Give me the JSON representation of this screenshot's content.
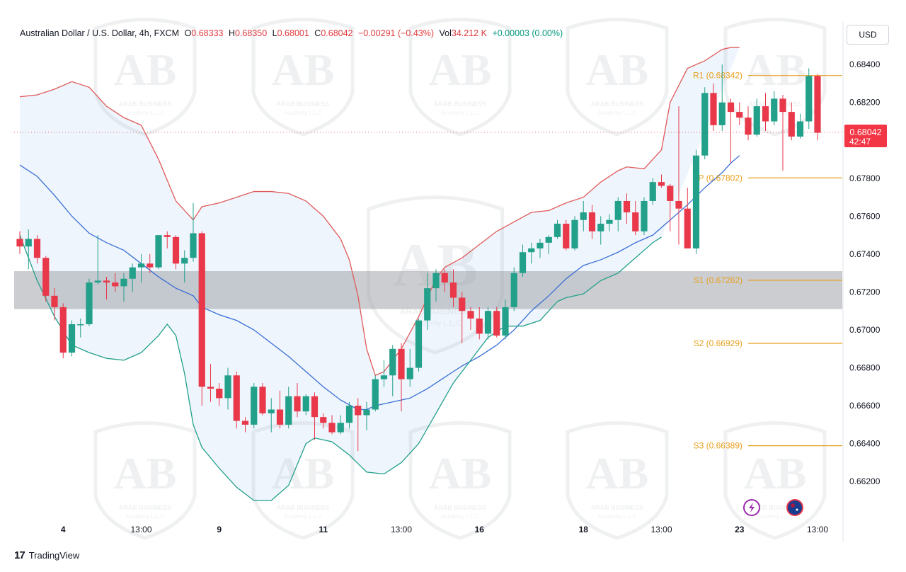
{
  "header": {
    "symbol": "Australian Dollar / U.S. Dollar, 4h, FXCM",
    "open_label": "O",
    "open": "0.68333",
    "high_label": "H",
    "high": "0.68350",
    "low_label": "L",
    "low": "0.68001",
    "close_label": "C",
    "close": "0.68042",
    "change": "−0.00291 (−0.43%)",
    "vol_label": "Vol",
    "vol": "34.212 K",
    "vol_change": "+0.00003 (0.00%)"
  },
  "currency_button": "USD",
  "price_tag": {
    "price": "0.68042",
    "timer": "42:47"
  },
  "footer": {
    "logo": "17",
    "brand": "TradingView"
  },
  "watermark": {
    "line1": "ARAB BUSINESS",
    "line2": "Academy L.L.C",
    "monogram": "AB"
  },
  "colors": {
    "up": "#22a08a",
    "down": "#e8384a",
    "upper_band": "#e05a5a",
    "mid_band": "#3a6fd6",
    "lower_band": "#22a08a",
    "pivot": "#e8a020",
    "zone": "#9a9ca2"
  },
  "icons": [
    "lightning-icon",
    "australia-flag-icon"
  ],
  "chart_data": {
    "type": "candlestick",
    "y_axis": {
      "min": 0.661,
      "max": 0.6855,
      "ticks": [
        "0.66200",
        "0.66400",
        "0.66600",
        "0.66800",
        "0.67000",
        "0.67200",
        "0.67400",
        "0.67600",
        "0.67800",
        "0.68000",
        "0.68200",
        "0.68400"
      ]
    },
    "x_axis_labels": [
      {
        "label": "4",
        "bar": 5,
        "bold": true
      },
      {
        "label": "13:00",
        "bar": 14,
        "bold": false
      },
      {
        "label": "9",
        "bar": 23,
        "bold": true
      },
      {
        "label": "11",
        "bar": 35,
        "bold": true
      },
      {
        "label": "13:00",
        "bar": 44,
        "bold": false
      },
      {
        "label": "16",
        "bar": 53,
        "bold": true
      },
      {
        "label": "18",
        "bar": 65,
        "bold": true
      },
      {
        "label": "13:00",
        "bar": 74,
        "bold": false
      },
      {
        "label": "23",
        "bar": 83,
        "bold": true
      },
      {
        "label": "13:00",
        "bar": 92,
        "bold": false
      }
    ],
    "candles": [
      [
        0.6748,
        0.6752,
        0.674,
        0.6744
      ],
      [
        0.6744,
        0.6753,
        0.6732,
        0.6748
      ],
      [
        0.6748,
        0.675,
        0.6735,
        0.6738
      ],
      [
        0.6738,
        0.6739,
        0.6715,
        0.6718
      ],
      [
        0.6718,
        0.6722,
        0.6705,
        0.6712
      ],
      [
        0.6712,
        0.6714,
        0.6685,
        0.6688
      ],
      [
        0.6688,
        0.6705,
        0.6686,
        0.6703
      ],
      [
        0.6703,
        0.6706,
        0.6696,
        0.6703
      ],
      [
        0.6703,
        0.6727,
        0.6702,
        0.6725
      ],
      [
        0.6725,
        0.675,
        0.6724,
        0.6726
      ],
      [
        0.6726,
        0.6728,
        0.6716,
        0.6725
      ],
      [
        0.6725,
        0.673,
        0.672,
        0.6723
      ],
      [
        0.6723,
        0.673,
        0.6715,
        0.6727
      ],
      [
        0.6727,
        0.6735,
        0.672,
        0.6733
      ],
      [
        0.6733,
        0.674,
        0.6725,
        0.6735
      ],
      [
        0.6735,
        0.674,
        0.673,
        0.6733
      ],
      [
        0.6733,
        0.675,
        0.6732,
        0.675
      ],
      [
        0.675,
        0.6752,
        0.6743,
        0.6749
      ],
      [
        0.6749,
        0.675,
        0.6732,
        0.6735
      ],
      [
        0.6735,
        0.6742,
        0.6725,
        0.6738
      ],
      [
        0.6738,
        0.6767,
        0.6736,
        0.6751
      ],
      [
        0.6751,
        0.6752,
        0.666,
        0.667
      ],
      [
        0.667,
        0.6682,
        0.6662,
        0.6669
      ],
      [
        0.6669,
        0.6672,
        0.666,
        0.6664
      ],
      [
        0.6664,
        0.668,
        0.6658,
        0.6676
      ],
      [
        0.6676,
        0.6678,
        0.6648,
        0.6652
      ],
      [
        0.6652,
        0.6654,
        0.6646,
        0.665
      ],
      [
        0.665,
        0.6672,
        0.6648,
        0.667
      ],
      [
        0.667,
        0.6672,
        0.6655,
        0.6656
      ],
      [
        0.6656,
        0.6664,
        0.6646,
        0.6658
      ],
      [
        0.6658,
        0.6668,
        0.6648,
        0.665
      ],
      [
        0.665,
        0.667,
        0.6648,
        0.6665
      ],
      [
        0.6665,
        0.6672,
        0.6654,
        0.6657
      ],
      [
        0.6657,
        0.6666,
        0.6655,
        0.6665
      ],
      [
        0.6665,
        0.6667,
        0.6642,
        0.6654
      ],
      [
        0.6654,
        0.6656,
        0.6648,
        0.6651
      ],
      [
        0.6651,
        0.6655,
        0.6645,
        0.6646
      ],
      [
        0.6646,
        0.6655,
        0.6645,
        0.6651
      ],
      [
        0.6651,
        0.6662,
        0.6648,
        0.666
      ],
      [
        0.666,
        0.6664,
        0.6636,
        0.6655
      ],
      [
        0.6655,
        0.6662,
        0.6647,
        0.6658
      ],
      [
        0.6658,
        0.6676,
        0.6657,
        0.6674
      ],
      [
        0.6674,
        0.6684,
        0.667,
        0.6676
      ],
      [
        0.6676,
        0.6692,
        0.6665,
        0.669
      ],
      [
        0.669,
        0.6693,
        0.6657,
        0.6674
      ],
      [
        0.6674,
        0.669,
        0.667,
        0.668
      ],
      [
        0.668,
        0.6706,
        0.6678,
        0.6705
      ],
      [
        0.6705,
        0.673,
        0.67,
        0.6722
      ],
      [
        0.6722,
        0.6732,
        0.6715,
        0.673
      ],
      [
        0.673,
        0.6732,
        0.672,
        0.6725
      ],
      [
        0.6725,
        0.6732,
        0.6712,
        0.6717
      ],
      [
        0.6717,
        0.672,
        0.6693,
        0.671
      ],
      [
        0.671,
        0.6712,
        0.67,
        0.6706
      ],
      [
        0.6706,
        0.6712,
        0.6695,
        0.6698
      ],
      [
        0.6698,
        0.6712,
        0.6695,
        0.671
      ],
      [
        0.671,
        0.6712,
        0.6696,
        0.6697
      ],
      [
        0.6697,
        0.6716,
        0.6695,
        0.6712
      ],
      [
        0.6712,
        0.6733,
        0.671,
        0.673
      ],
      [
        0.673,
        0.6745,
        0.6728,
        0.6741
      ],
      [
        0.6741,
        0.6746,
        0.6735,
        0.6743
      ],
      [
        0.6743,
        0.6748,
        0.6738,
        0.6746
      ],
      [
        0.6746,
        0.675,
        0.674,
        0.6749
      ],
      [
        0.6749,
        0.6758,
        0.6748,
        0.6756
      ],
      [
        0.6756,
        0.6758,
        0.6742,
        0.6743
      ],
      [
        0.6743,
        0.676,
        0.6742,
        0.6758
      ],
      [
        0.6758,
        0.6768,
        0.6752,
        0.6762
      ],
      [
        0.6762,
        0.6766,
        0.6748,
        0.6752
      ],
      [
        0.6752,
        0.676,
        0.6745,
        0.6756
      ],
      [
        0.6756,
        0.6761,
        0.6752,
        0.6758
      ],
      [
        0.6758,
        0.677,
        0.6752,
        0.6768
      ],
      [
        0.6768,
        0.6772,
        0.6756,
        0.6762
      ],
      [
        0.6762,
        0.6768,
        0.675,
        0.6752
      ],
      [
        0.6752,
        0.677,
        0.675,
        0.6768
      ],
      [
        0.6768,
        0.678,
        0.6766,
        0.6778
      ],
      [
        0.6778,
        0.6782,
        0.6775,
        0.6776
      ],
      [
        0.6776,
        0.6777,
        0.6752,
        0.6768
      ],
      [
        0.6768,
        0.6818,
        0.6745,
        0.6764
      ],
      [
        0.6764,
        0.6775,
        0.6743,
        0.6743
      ],
      [
        0.6743,
        0.6795,
        0.674,
        0.6792
      ],
      [
        0.6792,
        0.6828,
        0.679,
        0.6825
      ],
      [
        0.6825,
        0.683,
        0.6805,
        0.6808
      ],
      [
        0.6808,
        0.684,
        0.6805,
        0.682
      ],
      [
        0.682,
        0.6822,
        0.6788,
        0.6815
      ],
      [
        0.6815,
        0.682,
        0.6808,
        0.6812
      ],
      [
        0.6812,
        0.6818,
        0.68,
        0.6803
      ],
      [
        0.6803,
        0.6822,
        0.6802,
        0.6818
      ],
      [
        0.6818,
        0.6825,
        0.6805,
        0.681
      ],
      [
        0.681,
        0.6826,
        0.6808,
        0.6822
      ],
      [
        0.6822,
        0.6824,
        0.6784,
        0.6815
      ],
      [
        0.6815,
        0.682,
        0.68,
        0.6802
      ],
      [
        0.6802,
        0.6814,
        0.6801,
        0.681
      ],
      [
        0.681,
        0.6838,
        0.6806,
        0.6834
      ],
      [
        0.6834,
        0.6835,
        0.68,
        0.6804
      ]
    ],
    "bollinger": {
      "upper": [
        [
          0,
          0.6823
        ],
        [
          2,
          0.6824
        ],
        [
          4,
          0.6827
        ],
        [
          6,
          0.6831
        ],
        [
          8,
          0.6828
        ],
        [
          10,
          0.6818
        ],
        [
          12,
          0.6812
        ],
        [
          14,
          0.6808
        ],
        [
          16,
          0.679
        ],
        [
          18,
          0.6768
        ],
        [
          20,
          0.6758
        ],
        [
          21,
          0.6765
        ],
        [
          23,
          0.6767
        ],
        [
          25,
          0.677
        ],
        [
          27,
          0.6773
        ],
        [
          29,
          0.6773
        ],
        [
          31,
          0.6772
        ],
        [
          33,
          0.6768
        ],
        [
          35,
          0.676
        ],
        [
          37,
          0.6748
        ],
        [
          38,
          0.6737
        ],
        [
          39,
          0.6718
        ],
        [
          40,
          0.669
        ],
        [
          41,
          0.6676
        ],
        [
          42,
          0.6678
        ],
        [
          44,
          0.669
        ],
        [
          46,
          0.6707
        ],
        [
          48,
          0.6727
        ],
        [
          49,
          0.6733
        ],
        [
          51,
          0.6738
        ],
        [
          53,
          0.6745
        ],
        [
          55,
          0.6752
        ],
        [
          57,
          0.6757
        ],
        [
          59,
          0.6762
        ],
        [
          61,
          0.6763
        ],
        [
          63,
          0.6767
        ],
        [
          65,
          0.677
        ],
        [
          67,
          0.6778
        ],
        [
          69,
          0.6784
        ],
        [
          70,
          0.6786
        ],
        [
          72,
          0.6785
        ],
        [
          74,
          0.6795
        ],
        [
          75,
          0.682
        ],
        [
          77,
          0.6838
        ],
        [
          79,
          0.6842
        ],
        [
          81,
          0.6848
        ],
        [
          82,
          0.6849
        ],
        [
          83,
          0.6849
        ]
      ],
      "middle": [
        [
          0,
          0.6787
        ],
        [
          2,
          0.6781
        ],
        [
          4,
          0.6771
        ],
        [
          6,
          0.676
        ],
        [
          8,
          0.6751
        ],
        [
          10,
          0.6746
        ],
        [
          12,
          0.6742
        ],
        [
          14,
          0.6735
        ],
        [
          16,
          0.6728
        ],
        [
          18,
          0.6722
        ],
        [
          20,
          0.6718
        ],
        [
          21,
          0.6712
        ],
        [
          23,
          0.6708
        ],
        [
          25,
          0.6705
        ],
        [
          27,
          0.67
        ],
        [
          29,
          0.6693
        ],
        [
          31,
          0.6686
        ],
        [
          33,
          0.6678
        ],
        [
          35,
          0.667
        ],
        [
          37,
          0.6663
        ],
        [
          39,
          0.6658
        ],
        [
          40,
          0.6658
        ],
        [
          41,
          0.666
        ],
        [
          43,
          0.6662
        ],
        [
          45,
          0.6664
        ],
        [
          47,
          0.6669
        ],
        [
          49,
          0.6675
        ],
        [
          51,
          0.6681
        ],
        [
          53,
          0.6686
        ],
        [
          55,
          0.6692
        ],
        [
          57,
          0.67
        ],
        [
          59,
          0.671
        ],
        [
          61,
          0.6718
        ],
        [
          63,
          0.6727
        ],
        [
          65,
          0.6734
        ],
        [
          67,
          0.6737
        ],
        [
          69,
          0.6741
        ],
        [
          71,
          0.6746
        ],
        [
          73,
          0.675
        ],
        [
          75,
          0.6758
        ],
        [
          77,
          0.6766
        ],
        [
          79,
          0.6775
        ],
        [
          81,
          0.6783
        ],
        [
          82,
          0.6788
        ],
        [
          83,
          0.6792
        ]
      ],
      "lower": [
        [
          0,
          0.675
        ],
        [
          2,
          0.6726
        ],
        [
          4,
          0.6707
        ],
        [
          6,
          0.6692
        ],
        [
          8,
          0.6688
        ],
        [
          10,
          0.6685
        ],
        [
          12,
          0.6684
        ],
        [
          14,
          0.6688
        ],
        [
          16,
          0.6697
        ],
        [
          17,
          0.6703
        ],
        [
          18,
          0.6697
        ],
        [
          19,
          0.6677
        ],
        [
          20,
          0.665
        ],
        [
          21,
          0.6638
        ],
        [
          23,
          0.6627
        ],
        [
          25,
          0.6617
        ],
        [
          27,
          0.661
        ],
        [
          29,
          0.661
        ],
        [
          31,
          0.6618
        ],
        [
          33,
          0.664
        ],
        [
          34,
          0.6643
        ],
        [
          36,
          0.6641
        ],
        [
          38,
          0.6634
        ],
        [
          40,
          0.6625
        ],
        [
          42,
          0.6624
        ],
        [
          44,
          0.663
        ],
        [
          46,
          0.664
        ],
        [
          48,
          0.6656
        ],
        [
          50,
          0.6672
        ],
        [
          52,
          0.6684
        ],
        [
          54,
          0.6696
        ],
        [
          56,
          0.6702
        ],
        [
          58,
          0.6702
        ],
        [
          60,
          0.6705
        ],
        [
          62,
          0.6715
        ],
        [
          63,
          0.6717
        ],
        [
          65,
          0.6719
        ],
        [
          67,
          0.6726
        ],
        [
          69,
          0.673
        ],
        [
          71,
          0.6738
        ],
        [
          72,
          0.6742
        ],
        [
          73,
          0.6746
        ],
        [
          74,
          0.6749
        ]
      ]
    },
    "pivots": [
      {
        "label": "R1 (0.68342)",
        "value": 0.68342
      },
      {
        "label": "P (0.67802)",
        "value": 0.67802
      },
      {
        "label": "S1 (0.67262)",
        "value": 0.67262
      },
      {
        "label": "S2 (0.66929)",
        "value": 0.66929
      },
      {
        "label": "S3 (0.66389)",
        "value": 0.66389
      }
    ],
    "zone": {
      "from": 0.6711,
      "to": 0.6731
    },
    "last_price": 0.68042
  }
}
